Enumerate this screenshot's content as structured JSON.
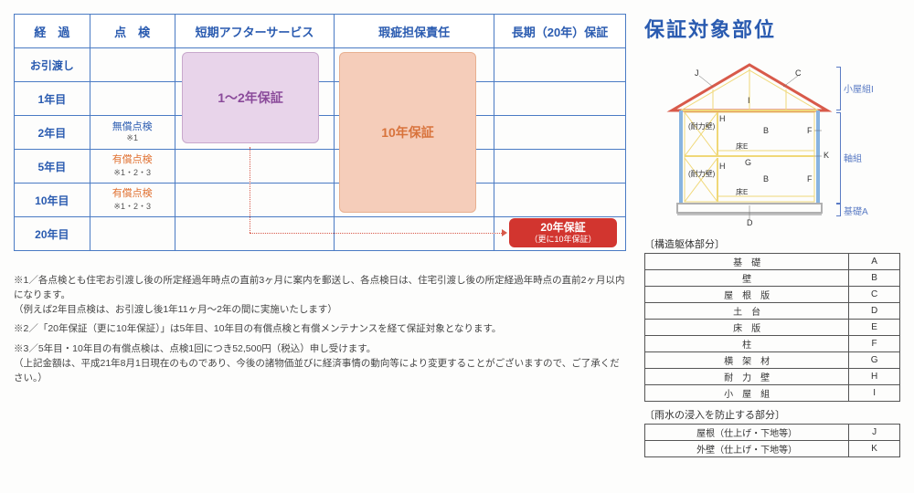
{
  "warranty_table": {
    "headers": [
      "経　過",
      "点　検",
      "短期アフターサービス",
      "瑕疵担保責任",
      "長期（20年）保証"
    ],
    "rows": [
      {
        "time": "お引渡し"
      },
      {
        "time": "1年目"
      },
      {
        "time": "2年目",
        "insp": "無償点検",
        "note": "※1"
      },
      {
        "time": "5年目",
        "insp": "有償点検",
        "note": "※1・2・3"
      },
      {
        "time": "10年目",
        "insp": "有償点検",
        "note": "※1・2・3"
      },
      {
        "time": "20年目"
      }
    ],
    "short_box": "1〜2年保証",
    "defect_box": "10年保証",
    "long_box": "20年保証",
    "long_box_sub": "（更に10年保証）"
  },
  "notes": {
    "n1": "※1／各点検とも住宅お引渡し後の所定経過年時点の直前3ヶ月に案内を郵送し、各点検日は、住宅引渡し後の所定経過年時点の直前2ヶ月以内になります。",
    "n1b": "（例えば2年目点検は、お引渡し後1年11ヶ月〜2年の間に実施いたします）",
    "n2": "※2／「20年保証（更に10年保証）」は5年目、10年目の有償点検と有償メンテナンスを経て保証対象となります。",
    "n3": "※3／5年目・10年目の有償点検は、点検1回につき52,500円（税込）申し受けます。",
    "n3b": "（上記金額は、平成21年8月1日現在のものであり、今後の諸物価並びに経済事情の動向等により変更することがございますので、ご了承ください。）"
  },
  "right": {
    "title": "保証対象部位",
    "diagram_labels": {
      "J": "J",
      "C": "C",
      "I": "I",
      "H": "H",
      "B": "B",
      "F": "F",
      "K": "K",
      "G": "G",
      "D": "D",
      "E": "E",
      "taika": "(耐力壁)",
      "yuka": "床E",
      "koya": "小屋組I",
      "jiku": "軸組",
      "kiso": "基礎A"
    },
    "parts1_title": "〔構造躯体部分〕",
    "parts1": [
      [
        "基　礎",
        "A"
      ],
      [
        "壁",
        "B"
      ],
      [
        "屋　根　版",
        "C"
      ],
      [
        "土　台",
        "D"
      ],
      [
        "床　版",
        "E"
      ],
      [
        "柱",
        "F"
      ],
      [
        "横　架　材",
        "G"
      ],
      [
        "耐　力　壁",
        "H"
      ],
      [
        "小　屋　組",
        "I"
      ]
    ],
    "parts2_title": "〔雨水の浸入を防止する部分〕",
    "parts2": [
      [
        "屋根（仕上げ・下地等）",
        "J"
      ],
      [
        "外壁（仕上げ・下地等）",
        "K"
      ]
    ]
  },
  "colors": {
    "blue": "#2a5bb0",
    "border": "#4a7bc4",
    "lilac": "#e8d4ea",
    "lilac_text": "#8a4a9a",
    "peach": "#f5cdba",
    "peach_text": "#d8733c",
    "red": "#d2352f",
    "orange_text": "#e07030",
    "house_yellow": "#f0d878",
    "house_blue": "#88b4e0",
    "house_red": "#d85a4a",
    "house_base": "#b0b0b0"
  }
}
